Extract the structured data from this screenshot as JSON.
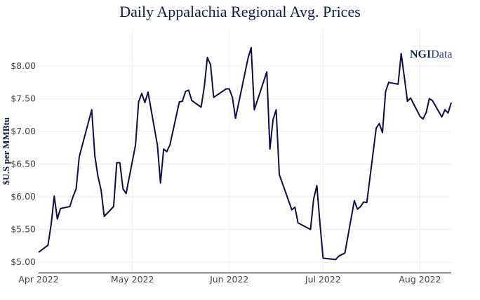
{
  "chart_data": {
    "type": "line",
    "title": "Daily Appalachia Regional Avg. Prices",
    "xlabel": "",
    "ylabel": "$U.S per MMBtu",
    "xlim": [
      "2022-04-01",
      "2022-08-11"
    ],
    "ylim": [
      4.84,
      8.45
    ],
    "grid": true,
    "line_color": "#0c0c4a",
    "x_ticks": [
      {
        "date": "2022-04-01",
        "label": "Apr 2022"
      },
      {
        "date": "2022-05-01",
        "label": "May 2022"
      },
      {
        "date": "2022-06-01",
        "label": "Jun 2022"
      },
      {
        "date": "2022-07-01",
        "label": "Jul 2022"
      },
      {
        "date": "2022-08-01",
        "label": "Aug 2022"
      }
    ],
    "y_ticks": [
      {
        "value": 5.0,
        "label": "$5.00"
      },
      {
        "value": 5.5,
        "label": "$5.50"
      },
      {
        "value": 6.0,
        "label": "$6.00"
      },
      {
        "value": 6.5,
        "label": "$6.50"
      },
      {
        "value": 7.0,
        "label": "$7.00"
      },
      {
        "value": 7.5,
        "label": "$7.50"
      },
      {
        "value": 8.0,
        "label": "$8.00"
      }
    ],
    "series": [
      {
        "x": [
          "2022-04-01",
          "2022-04-04",
          "2022-04-05",
          "2022-04-06",
          "2022-04-07",
          "2022-04-08",
          "2022-04-11",
          "2022-04-12",
          "2022-04-13",
          "2022-04-14",
          "2022-04-18",
          "2022-04-19",
          "2022-04-20",
          "2022-04-21",
          "2022-04-22",
          "2022-04-25",
          "2022-04-26",
          "2022-04-27",
          "2022-04-28",
          "2022-04-29",
          "2022-05-02",
          "2022-05-03",
          "2022-05-04",
          "2022-05-05",
          "2022-05-06",
          "2022-05-09",
          "2022-05-10",
          "2022-05-11",
          "2022-05-12",
          "2022-05-13",
          "2022-05-16",
          "2022-05-17",
          "2022-05-18",
          "2022-05-19",
          "2022-05-20",
          "2022-05-23",
          "2022-05-24",
          "2022-05-25",
          "2022-05-26",
          "2022-05-27",
          "2022-05-31",
          "2022-06-01",
          "2022-06-02",
          "2022-06-03",
          "2022-06-07",
          "2022-06-08",
          "2022-06-09",
          "2022-06-13",
          "2022-06-14",
          "2022-06-15",
          "2022-06-16",
          "2022-06-17",
          "2022-06-21",
          "2022-06-22",
          "2022-06-23",
          "2022-06-27",
          "2022-06-28",
          "2022-06-29",
          "2022-06-30",
          "2022-07-01",
          "2022-07-05",
          "2022-07-06",
          "2022-07-08",
          "2022-07-11",
          "2022-07-12",
          "2022-07-13",
          "2022-07-14",
          "2022-07-15",
          "2022-07-18",
          "2022-07-19",
          "2022-07-20",
          "2022-07-21",
          "2022-07-22",
          "2022-07-25",
          "2022-07-26",
          "2022-07-27",
          "2022-07-28",
          "2022-07-29",
          "2022-08-01",
          "2022-08-02",
          "2022-08-03",
          "2022-08-04",
          "2022-08-05",
          "2022-08-08",
          "2022-08-09",
          "2022-08-10",
          "2022-08-11"
        ],
        "y": [
          5.15,
          5.26,
          5.57,
          6.01,
          5.66,
          5.82,
          5.85,
          6.0,
          6.12,
          6.61,
          7.33,
          6.62,
          6.31,
          6.1,
          5.7,
          5.85,
          6.52,
          6.52,
          6.12,
          6.05,
          6.79,
          7.45,
          7.58,
          7.44,
          7.6,
          6.79,
          6.21,
          6.73,
          6.69,
          6.79,
          7.45,
          7.46,
          7.61,
          7.63,
          7.47,
          7.37,
          7.68,
          8.13,
          8.02,
          7.52,
          7.65,
          7.65,
          7.52,
          7.2,
          8.12,
          8.28,
          7.33,
          7.91,
          6.73,
          7.18,
          7.33,
          6.34,
          5.8,
          5.84,
          5.6,
          5.5,
          5.97,
          6.17,
          5.6,
          5.06,
          5.04,
          5.09,
          5.14,
          5.94,
          5.81,
          5.85,
          5.92,
          5.91,
          7.05,
          7.12,
          6.98,
          7.61,
          7.75,
          7.72,
          8.19,
          7.83,
          7.46,
          7.51,
          7.23,
          7.19,
          7.29,
          7.5,
          7.47,
          7.22,
          7.33,
          7.28,
          7.44
        ]
      }
    ],
    "watermark": {
      "text_bold": "NGI",
      "text_regular": "Data"
    }
  }
}
